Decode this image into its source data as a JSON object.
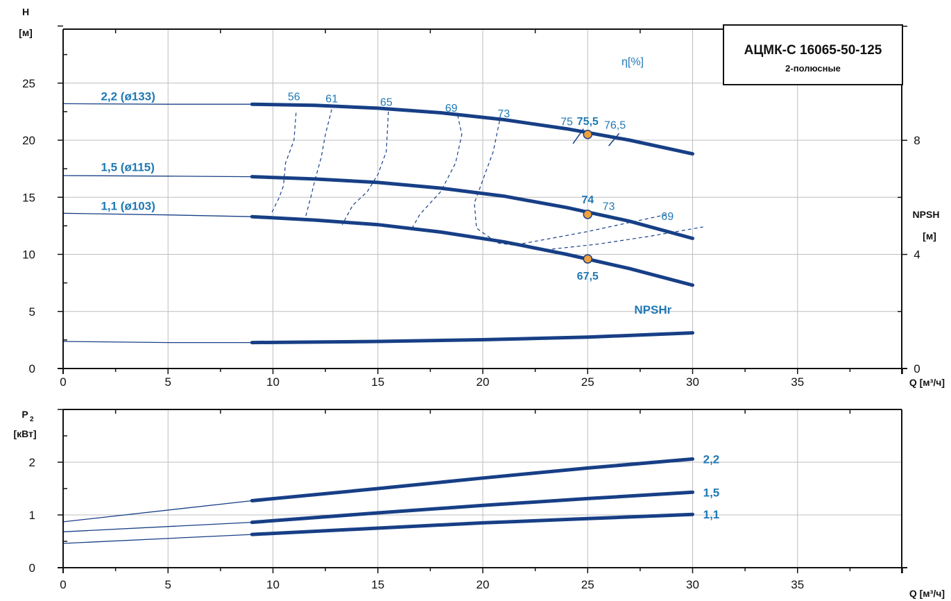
{
  "chart_data": [
    {
      "type": "line",
      "title": "АЦМК-С 16065-50-125",
      "subtitle": "2-полюсные",
      "xlabel": "Q [м³/ч]",
      "ylabel_top": "H",
      "ylabel_unit": "[м]",
      "y2label_top": "NPSH",
      "y2label_unit": "[м]",
      "efficiency_label": "η[%]",
      "xlim": [
        0,
        40
      ],
      "ylim": [
        0,
        30
      ],
      "y2lim": [
        0,
        12
      ],
      "xticks": [
        "0",
        "5",
        "10",
        "15",
        "20",
        "25",
        "30",
        "35"
      ],
      "yticks": [
        "0",
        "5",
        "10",
        "15",
        "20",
        "25"
      ],
      "y2ticks": [
        "0",
        "4",
        "8"
      ],
      "grid": true,
      "series": [
        {
          "name": "2,2 (ø133)",
          "label_text": "2,2 (ø133)",
          "x": [
            0,
            5,
            9,
            12,
            15,
            18,
            21,
            24,
            27,
            30
          ],
          "y": [
            23.2,
            23.15,
            23.15,
            23.05,
            22.8,
            22.4,
            21.8,
            21.0,
            20.0,
            18.8
          ]
        },
        {
          "name": "1,5 (ø115)",
          "label_text": "1,5 (ø115)",
          "x": [
            0,
            5,
            9,
            12,
            15,
            18,
            21,
            24,
            27,
            30
          ],
          "y": [
            16.9,
            16.85,
            16.8,
            16.6,
            16.3,
            15.8,
            15.1,
            14.1,
            12.9,
            11.4
          ]
        },
        {
          "name": "1,1 (ø103)",
          "label_text": "1,1 (ø103)",
          "x": [
            0,
            5,
            9,
            12,
            15,
            18,
            21,
            24,
            27,
            30
          ],
          "y": [
            13.6,
            13.45,
            13.3,
            13.0,
            12.6,
            11.95,
            11.1,
            10.0,
            8.75,
            7.3
          ]
        },
        {
          "name": "NPSHr",
          "label_text": "NPSHr",
          "axis": "right",
          "x": [
            0,
            5,
            9,
            15,
            20,
            25,
            30
          ],
          "y": [
            0.95,
            0.91,
            0.91,
            0.95,
            1.01,
            1.1,
            1.25
          ]
        }
      ],
      "efficiency_lines": [
        {
          "label": "56",
          "x": [
            11.1,
            11.0,
            10.6,
            10.5,
            10.3,
            9.9
          ],
          "y": [
            22.4,
            20.0,
            18.0,
            16.0,
            15.0,
            13.5
          ]
        },
        {
          "label": "61",
          "x": [
            12.8,
            12.5,
            12.3,
            12.0,
            11.8,
            11.5
          ],
          "y": [
            22.7,
            20.5,
            18.5,
            16.5,
            15.0,
            12.9
          ]
        },
        {
          "label": "65",
          "x": [
            15.5,
            15.4,
            15.0,
            14.5,
            13.8,
            13.3
          ],
          "y": [
            22.5,
            19.0,
            17.0,
            15.5,
            14.3,
            12.6
          ]
        },
        {
          "label": "69",
          "x": [
            18.8,
            19.0,
            18.7,
            18.0,
            17.0,
            16.6
          ],
          "y": [
            22.2,
            20.5,
            18.0,
            15.5,
            13.5,
            12.2
          ]
        },
        {
          "label": "73",
          "x": [
            20.8,
            20.5,
            20.1,
            19.6,
            19.7,
            20.7,
            21.5,
            25.0,
            28.8
          ],
          "y": [
            21.7,
            19.0,
            17.0,
            14.5,
            12.3,
            11.0,
            10.8,
            12.0,
            13.5
          ]
        },
        {
          "label": "69",
          "x": [
            23.0,
            25.5,
            28.0,
            30.5
          ],
          "y": [
            10.4,
            10.9,
            11.6,
            12.4
          ]
        }
      ],
      "efficiency_marks": [
        {
          "label": "75",
          "x": [
            24.3,
            24.8
          ],
          "y": [
            19.7,
            21.0
          ]
        },
        {
          "label": "76,5",
          "x": [
            26.0,
            26.5
          ],
          "y": [
            19.5,
            20.6
          ]
        }
      ],
      "efficiency_labels": [
        {
          "text": "56",
          "x": 11.0,
          "y": 23.5
        },
        {
          "text": "61",
          "x": 12.8,
          "y": 23.3
        },
        {
          "text": "65",
          "x": 15.4,
          "y": 23.0
        },
        {
          "text": "69",
          "x": 18.5,
          "y": 22.5
        },
        {
          "text": "73",
          "x": 21.0,
          "y": 22.0
        },
        {
          "text": "75",
          "x": 24.0,
          "y": 21.3
        },
        {
          "text": "76,5",
          "x": 26.3,
          "y": 21.0
        },
        {
          "text": "73",
          "x": 26.0,
          "y": 13.9
        },
        {
          "text": "69",
          "x": 28.8,
          "y": 13.0
        }
      ],
      "operating_points": [
        {
          "label": "75,5",
          "x": 25,
          "y": 20.5
        },
        {
          "label": "74",
          "x": 25,
          "y": 13.5
        },
        {
          "label": "67,5",
          "x": 25,
          "y": 9.6
        }
      ]
    },
    {
      "type": "line",
      "xlabel": "Q [м³/ч]",
      "ylabel_top": "P",
      "ylabel_sub": "2",
      "ylabel_unit": "[кВт]",
      "xlim": [
        0,
        40
      ],
      "ylim": [
        0,
        3
      ],
      "xticks": [
        "0",
        "5",
        "10",
        "15",
        "20",
        "25",
        "30",
        "35"
      ],
      "yticks": [
        "0",
        "1",
        "2"
      ],
      "grid": true,
      "series": [
        {
          "name": "2,2",
          "x": [
            0,
            9,
            15,
            20,
            25,
            30
          ],
          "y": [
            0.87,
            1.27,
            1.5,
            1.7,
            1.89,
            2.06
          ]
        },
        {
          "name": "1,5",
          "x": [
            0,
            9,
            15,
            20,
            25,
            30
          ],
          "y": [
            0.68,
            0.86,
            1.04,
            1.18,
            1.31,
            1.43
          ]
        },
        {
          "name": "1,1",
          "x": [
            0,
            9,
            15,
            20,
            25,
            30
          ],
          "y": [
            0.46,
            0.63,
            0.75,
            0.85,
            0.93,
            1.01
          ]
        }
      ]
    }
  ],
  "colors": {
    "curve": "#173f86",
    "label": "#1f78b4",
    "point": "#f0a03c",
    "grid": "#bdbdbd",
    "axis": "#111111"
  }
}
